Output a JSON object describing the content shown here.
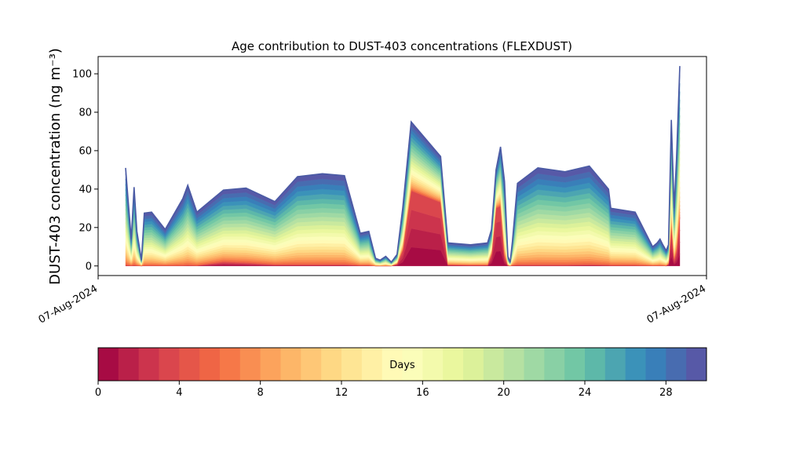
{
  "chart_data": {
    "type": "area",
    "title": "Age contribution to DUST-403 concentrations (FLEXDUST)",
    "ylabel": "DUST-403 concentration (ng m⁻³)",
    "xlabel": "",
    "x_tick_labels": [
      "07-Aug-2024",
      "07-Aug-2024"
    ],
    "ylim": [
      -5,
      109
    ],
    "yticks": [
      0,
      20,
      40,
      60,
      80,
      100
    ],
    "x": [
      0,
      0.4,
      1.0,
      1.5,
      2.0,
      2.8,
      3.3,
      4.6,
      7.0,
      10.1,
      11.0,
      12.6,
      17.3,
      21.3,
      26.4,
      30.4,
      34.8,
      38.7,
      41.5,
      43.0,
      44.2,
      45.0,
      46.0,
      47.0,
      48.0,
      49.0,
      50.5,
      55.7,
      57.0,
      61.0,
      64.0,
      64.7,
      65.5,
      66.3,
      67.0,
      67.6,
      68.0,
      68.4,
      69.3,
      72.9,
      77.7,
      82.0,
      85.4,
      85.8,
      90.1,
      93.2,
      94.0,
      94.5,
      95.0,
      95.6,
      96.0,
      96.5,
      97.0,
      97.4,
      98.0
    ],
    "total_concentration": [
      51,
      36,
      14,
      41,
      18,
      3,
      27.5,
      28,
      19,
      35,
      42,
      28,
      39.5,
      40.5,
      33.5,
      46.5,
      48,
      47,
      17,
      18,
      4,
      3,
      5,
      2,
      6,
      30,
      75,
      57,
      12,
      11,
      12,
      19,
      50,
      62,
      44,
      5,
      2,
      13,
      43,
      51,
      49,
      52,
      40,
      30,
      28,
      10,
      12,
      14,
      11,
      8,
      11,
      76,
      30,
      55,
      104
    ],
    "fresh_component_0_4_days": [
      0.2,
      0.2,
      0.1,
      0.2,
      0.1,
      0,
      0.1,
      0.1,
      0.1,
      0.1,
      0.2,
      0.1,
      2.0,
      1.5,
      0.5,
      0.5,
      0.5,
      0.5,
      0.2,
      0.2,
      0,
      0,
      0,
      0,
      1.0,
      8,
      39,
      33,
      0.5,
      0.3,
      0.3,
      6,
      30,
      31,
      5,
      0.2,
      0,
      0.2,
      0.3,
      0.3,
      0.3,
      0.5,
      0.3,
      0.2,
      0.2,
      0.1,
      0.1,
      0.1,
      0.1,
      0,
      1,
      20,
      3,
      7,
      25
    ],
    "series_days": [
      0,
      30
    ],
    "colorbar": {
      "label": "Days",
      "ticks": [
        0,
        4,
        8,
        12,
        16,
        20,
        24,
        28
      ],
      "range": [
        0,
        30
      ],
      "colormap": [
        "#9e0142",
        "#d53e4f",
        "#f46d43",
        "#fdae61",
        "#fee08b",
        "#ffffbf",
        "#e6f598",
        "#abdda4",
        "#66c2a5",
        "#3288bd",
        "#5e4fa2"
      ]
    },
    "grid": false
  }
}
